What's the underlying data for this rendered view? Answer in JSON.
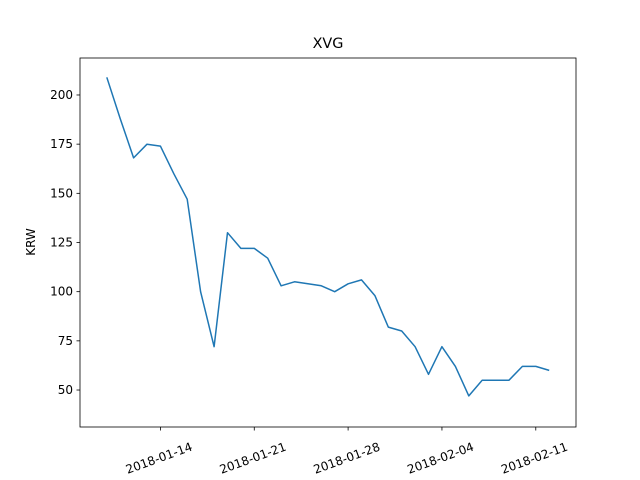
{
  "chart_data": {
    "type": "line",
    "title": "XVG",
    "y_label": "KRW",
    "x": [
      "2018-01-10",
      "2018-01-11",
      "2018-01-12",
      "2018-01-13",
      "2018-01-14",
      "2018-01-15",
      "2018-01-16",
      "2018-01-17",
      "2018-01-18",
      "2018-01-19",
      "2018-01-20",
      "2018-01-21",
      "2018-01-22",
      "2018-01-23",
      "2018-01-24",
      "2018-01-25",
      "2018-01-26",
      "2018-01-27",
      "2018-01-28",
      "2018-01-29",
      "2018-01-30",
      "2018-01-31",
      "2018-02-01",
      "2018-02-02",
      "2018-02-03",
      "2018-02-04",
      "2018-02-05",
      "2018-02-06",
      "2018-02-07",
      "2018-02-08",
      "2018-02-09",
      "2018-02-10",
      "2018-02-11",
      "2018-02-12"
    ],
    "series": [
      {
        "name": "XVG",
        "color": "#1f77b4",
        "values": [
          209,
          188,
          168,
          175,
          174,
          160,
          147,
          100,
          72,
          130,
          122,
          122,
          117,
          103,
          105,
          104,
          103,
          100,
          104,
          106,
          98,
          82,
          80,
          72,
          58,
          72,
          62,
          47,
          55,
          55,
          55,
          62,
          62,
          60
        ]
      }
    ],
    "xlim": [
      "2018-01-08",
      "2018-02-14"
    ],
    "xticks": [
      "2018-01-14",
      "2018-01-21",
      "2018-01-28",
      "2018-02-04",
      "2018-02-11"
    ],
    "ylim": [
      31.2,
      218.8
    ],
    "yticks": [
      50,
      75,
      100,
      125,
      150,
      175,
      200
    ],
    "grid": false
  }
}
